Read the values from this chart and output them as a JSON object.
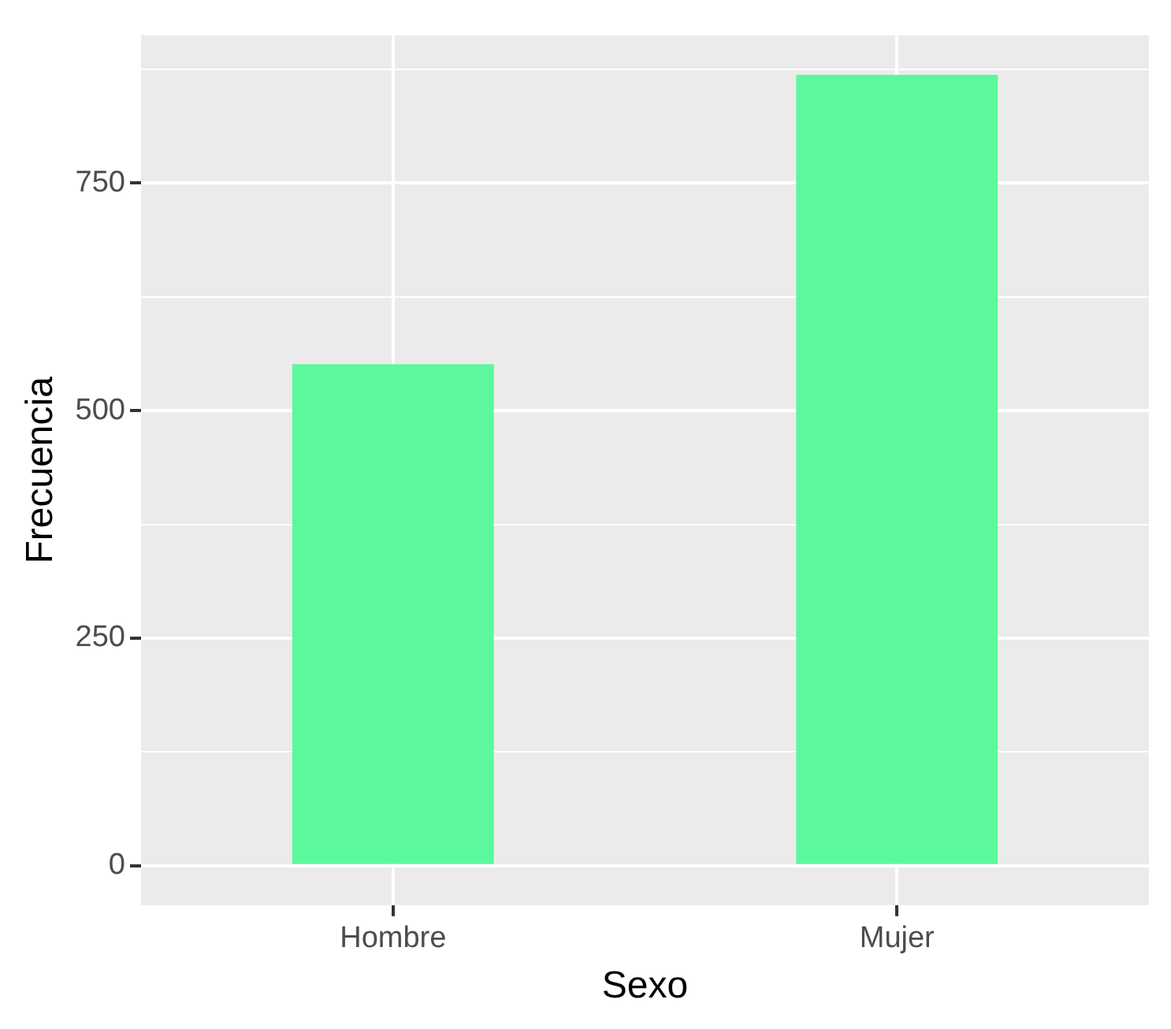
{
  "chart_data": {
    "type": "bar",
    "xlabel": "Sexo",
    "ylabel": "Frecuencia",
    "categories": [
      "Hombre",
      "Mujer"
    ],
    "values": [
      551,
      869
    ],
    "color": "#5cf89c",
    "ylim": [
      -43.45,
      912.45
    ],
    "yticks": [
      {
        "value": 0,
        "label": "0"
      },
      {
        "value": 125,
        "label": null
      },
      {
        "value": 250,
        "label": "250"
      },
      {
        "value": 375,
        "label": null
      },
      {
        "value": 500,
        "label": "500"
      },
      {
        "value": 625,
        "label": null
      },
      {
        "value": 750,
        "label": "750"
      },
      {
        "value": 875,
        "label": null
      }
    ],
    "grid": true,
    "legend": false
  }
}
